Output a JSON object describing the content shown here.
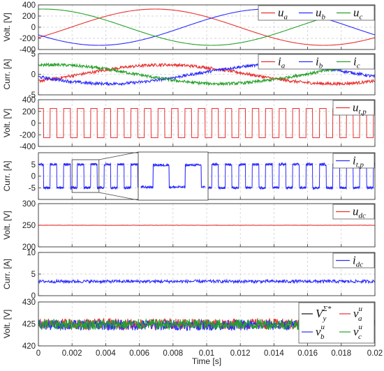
{
  "figure": {
    "xlabel": "Time [s]"
  },
  "colors": {
    "red": "#e8312f",
    "blue": "#2b2bff",
    "green": "#27a12a",
    "black": "#111111",
    "grid": "#c9c9c9"
  },
  "chart_data": [
    {
      "type": "line",
      "ylabel": "Volt. [V]",
      "ylim": [
        -400,
        400
      ],
      "yticks": [
        "400",
        "200",
        "0",
        "-200",
        "-400"
      ],
      "ytick_values": [
        400,
        200,
        0,
        -200,
        -400
      ],
      "xlim": [
        0,
        0.02
      ],
      "legend": {
        "placement": "top-right",
        "layout": "row"
      },
      "series": [
        {
          "name": "u_a",
          "label_main": "u",
          "label_sub": "a",
          "color": "#e8312f",
          "kind": "sine",
          "amplitude": 325,
          "frequency_hz": 50,
          "phase_deg": -35,
          "noise": 0
        },
        {
          "name": "u_b",
          "label_main": "u",
          "label_sub": "b",
          "color": "#2b2bff",
          "kind": "sine",
          "amplitude": 325,
          "frequency_hz": 50,
          "phase_deg": -155,
          "noise": 0
        },
        {
          "name": "u_c",
          "label_main": "u",
          "label_sub": "c",
          "color": "#27a12a",
          "kind": "sine",
          "amplitude": 325,
          "frequency_hz": 50,
          "phase_deg": 85,
          "noise": 0
        }
      ]
    },
    {
      "type": "line",
      "ylabel": "Curr. [A]",
      "ylim": [
        -5,
        5
      ],
      "yticks": [
        "5",
        "0",
        "-5"
      ],
      "ytick_values": [
        5,
        0,
        -5
      ],
      "xlim": [
        0,
        0.02
      ],
      "legend": {
        "placement": "top-right",
        "layout": "row"
      },
      "series": [
        {
          "name": "i_a",
          "label_main": "i",
          "label_sub": "a",
          "color": "#e8312f",
          "kind": "sine",
          "amplitude": 2.3,
          "frequency_hz": 50,
          "phase_deg": -45,
          "noise": 0.35
        },
        {
          "name": "i_b",
          "label_main": "i",
          "label_sub": "b",
          "color": "#2b2bff",
          "kind": "sine",
          "amplitude": 2.3,
          "frequency_hz": 50,
          "phase_deg": -165,
          "noise": 0.35
        },
        {
          "name": "i_c",
          "label_main": "i",
          "label_sub": "c",
          "color": "#27a12a",
          "kind": "sine",
          "amplitude": 2.3,
          "frequency_hz": 50,
          "phase_deg": 75,
          "noise": 0.35
        }
      ]
    },
    {
      "type": "line",
      "ylabel": "Volt. [V]",
      "ylim": [
        -400,
        400
      ],
      "yticks": [
        "400",
        "200",
        "0",
        "-200",
        "-400"
      ],
      "ytick_values": [
        400,
        200,
        0,
        -200,
        -400
      ],
      "xlim": [
        0,
        0.02
      ],
      "legend": {
        "placement": "top-right",
        "layout": "row"
      },
      "series": [
        {
          "name": "u_t,p",
          "label_main": "u",
          "label_sub": "t,p",
          "color": "#e8312f",
          "kind": "square",
          "high": 250,
          "low": -250,
          "period_s": 0.0008,
          "duty": 0.5,
          "phase_s": 0.0001,
          "noise": 0
        }
      ]
    },
    {
      "type": "line",
      "ylabel": "Curr. [A]",
      "ylim": [
        -10,
        10
      ],
      "yticks": [
        "5",
        "0",
        "-5"
      ],
      "ytick_values": [
        5,
        0,
        -5
      ],
      "xlim": [
        0,
        0.02
      ],
      "legend": {
        "placement": "top-right",
        "layout": "row"
      },
      "inset": {
        "x_from": 0.002,
        "x_to": 0.0036
      },
      "series": [
        {
          "name": "i_t,p",
          "label_main": "i",
          "label_sub": "t,p",
          "color": "#2b2bff",
          "kind": "square",
          "high": 5,
          "low": -5,
          "period_s": 0.0008,
          "duty": 0.5,
          "phase_s": 0.0001,
          "noise": 0.5
        }
      ]
    },
    {
      "type": "line",
      "ylabel": "Volt. [V]",
      "ylim": [
        200,
        300
      ],
      "yticks": [
        "300",
        "250",
        "200"
      ],
      "ytick_values": [
        300,
        250,
        200
      ],
      "xlim": [
        0,
        0.02
      ],
      "legend": {
        "placement": "top-right",
        "layout": "row"
      },
      "series": [
        {
          "name": "u_dc",
          "label_main": "u",
          "label_sub": "dc",
          "color": "#e8312f",
          "kind": "constant",
          "value": 250,
          "noise": 0.4
        }
      ]
    },
    {
      "type": "line",
      "ylabel": "Curr. [A]",
      "ylim": [
        0,
        10
      ],
      "yticks": [
        "10",
        "5",
        "0"
      ],
      "ytick_values": [
        10,
        5,
        0
      ],
      "xlim": [
        0,
        0.02
      ],
      "legend": {
        "placement": "top-right",
        "layout": "row"
      },
      "series": [
        {
          "name": "i_dc",
          "label_main": "i",
          "label_sub": "dc",
          "color": "#2b2bff",
          "kind": "constant",
          "value": 3.3,
          "noise": 0.35
        }
      ]
    },
    {
      "type": "line",
      "ylabel": "Volt. [V]",
      "ylim": [
        420,
        430
      ],
      "yticks": [
        "430",
        "425",
        "420"
      ],
      "ytick_values": [
        430,
        425,
        420
      ],
      "xlim": [
        0,
        0.02
      ],
      "xticks": [
        "0",
        "0.002",
        "0.004",
        "0.006",
        "0.008",
        "0.01",
        "0.012",
        "0.014",
        "0.016",
        "0.018",
        "0.02"
      ],
      "xtick_values": [
        0,
        0.002,
        0.004,
        0.006,
        0.008,
        0.01,
        0.012,
        0.014,
        0.016,
        0.018,
        0.02
      ],
      "legend": {
        "placement": "top-right",
        "layout": "grid"
      },
      "series": [
        {
          "name": "V_y^Σ*",
          "label_main": "V",
          "label_sub": "y",
          "label_sup": "Σ*",
          "color": "#111111",
          "kind": "constant",
          "value": 425,
          "noise": 0
        },
        {
          "name": "v_a^u",
          "label_main": "v",
          "label_sub": "a",
          "label_sup": "u",
          "color": "#e8312f",
          "kind": "constant",
          "value": 425,
          "noise": 1.2
        },
        {
          "name": "v_b^u",
          "label_main": "v",
          "label_sub": "b",
          "label_sup": "u",
          "color": "#2b2bff",
          "kind": "constant",
          "value": 424.7,
          "noise": 1.2
        },
        {
          "name": "v_c^u",
          "label_main": "v",
          "label_sub": "c",
          "label_sup": "u",
          "color": "#27a12a",
          "kind": "constant",
          "value": 424.9,
          "noise": 1.2
        }
      ]
    }
  ]
}
